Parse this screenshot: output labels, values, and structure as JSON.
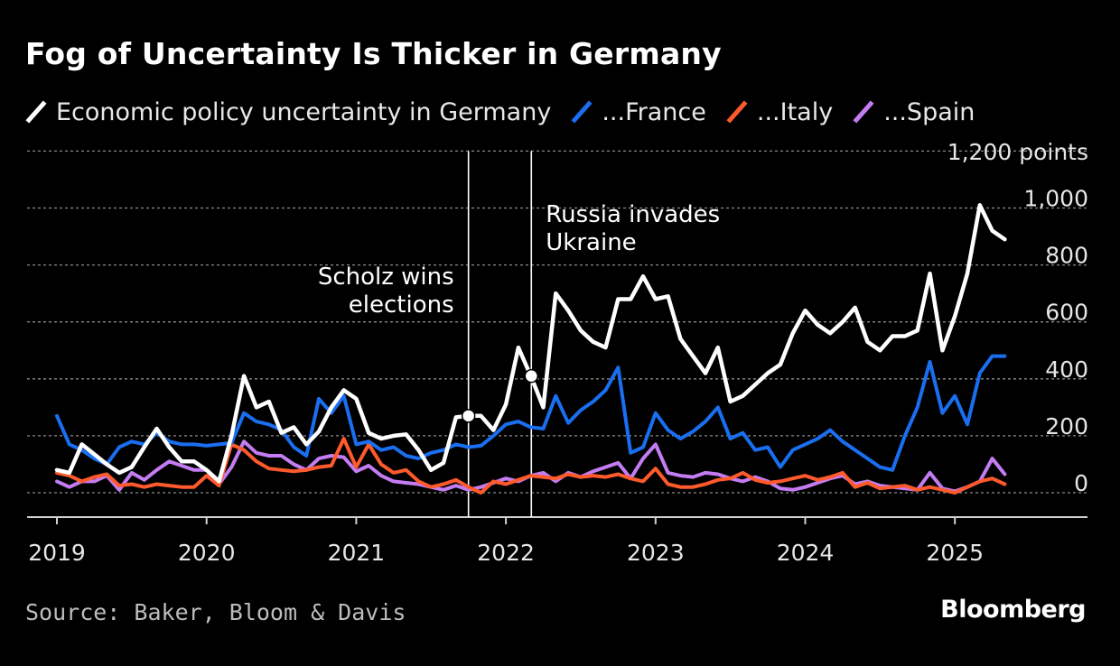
{
  "chart_data": {
    "type": "line",
    "title": "Fog of Uncertainty Is Thicker in Germany",
    "y_unit_label": "1,200 points",
    "ylim": [
      -50,
      1200
    ],
    "y_ticks": [
      0,
      200,
      400,
      600,
      800,
      1000
    ],
    "y_tick_labels": [
      "0",
      "200",
      "400",
      "600",
      "800",
      "1,000"
    ],
    "xlim": [
      2018.8,
      2025.85
    ],
    "x_ticks": [
      2019,
      2020,
      2021,
      2022,
      2023,
      2024,
      2025
    ],
    "x_tick_labels": [
      "2019",
      "2020",
      "2021",
      "2022",
      "2023",
      "2024",
      "2025"
    ],
    "start": 2019.0,
    "step": 0.08333,
    "series": [
      {
        "name": "Economic policy uncertainty in Germany",
        "color": "#ffffff",
        "values": [
          80,
          70,
          170,
          135,
          100,
          70,
          90,
          160,
          225,
          160,
          110,
          110,
          80,
          40,
          200,
          410,
          300,
          320,
          210,
          230,
          170,
          215,
          300,
          360,
          330,
          210,
          190,
          200,
          205,
          150,
          80,
          105,
          265,
          270,
          270,
          220,
          310,
          510,
          410,
          300,
          700,
          640,
          570,
          530,
          510,
          680,
          680,
          760,
          680,
          690,
          540,
          480,
          420,
          510,
          320,
          340,
          380,
          420,
          450,
          560,
          640,
          590,
          560,
          600,
          650,
          530,
          500,
          550,
          550,
          570,
          770,
          500,
          620,
          770,
          1010,
          920,
          890
        ]
      },
      {
        "name": "...France",
        "color": "#1a6ef0",
        "values": [
          270,
          170,
          150,
          120,
          100,
          160,
          180,
          170,
          210,
          180,
          170,
          170,
          165,
          170,
          175,
          280,
          250,
          240,
          220,
          160,
          130,
          330,
          280,
          340,
          170,
          180,
          150,
          160,
          130,
          120,
          140,
          150,
          170,
          160,
          165,
          200,
          240,
          250,
          230,
          225,
          340,
          245,
          290,
          320,
          360,
          440,
          140,
          160,
          280,
          220,
          190,
          215,
          250,
          300,
          190,
          210,
          150,
          160,
          90,
          150,
          170,
          190,
          220,
          180,
          150,
          120,
          90,
          80,
          200,
          300,
          460,
          280,
          340,
          240,
          420,
          480,
          480
        ]
      },
      {
        "name": "...Italy",
        "color": "#ff5a2c",
        "values": [
          70,
          60,
          40,
          55,
          65,
          25,
          30,
          20,
          30,
          25,
          20,
          20,
          60,
          25,
          170,
          150,
          110,
          85,
          80,
          75,
          80,
          90,
          95,
          190,
          90,
          170,
          100,
          70,
          80,
          40,
          20,
          30,
          45,
          20,
          0,
          40,
          30,
          45,
          60,
          55,
          50,
          65,
          55,
          60,
          55,
          65,
          50,
          40,
          85,
          30,
          20,
          20,
          30,
          45,
          50,
          70,
          45,
          35,
          40,
          50,
          60,
          45,
          55,
          70,
          20,
          35,
          15,
          20,
          25,
          10,
          20,
          10,
          0,
          20,
          40,
          50,
          30
        ]
      },
      {
        "name": "...Spain",
        "color": "#c47cf2",
        "values": [
          40,
          20,
          40,
          40,
          60,
          10,
          70,
          45,
          80,
          110,
          95,
          80,
          80,
          30,
          90,
          180,
          140,
          130,
          130,
          100,
          80,
          120,
          130,
          125,
          75,
          95,
          60,
          40,
          35,
          30,
          20,
          10,
          25,
          10,
          20,
          35,
          50,
          40,
          60,
          70,
          40,
          70,
          55,
          75,
          90,
          105,
          50,
          120,
          170,
          70,
          60,
          55,
          70,
          65,
          50,
          40,
          55,
          40,
          15,
          10,
          20,
          35,
          50,
          60,
          30,
          40,
          25,
          20,
          15,
          10,
          70,
          15,
          5,
          20,
          40,
          120,
          65
        ]
      }
    ],
    "annotations": [
      {
        "x": 2021.75,
        "lines": [
          "Scholz wins",
          "elections"
        ],
        "marker_series": 0,
        "align": "right"
      },
      {
        "x": 2022.17,
        "lines": [
          "Russia invades",
          "Ukraine"
        ],
        "marker_series": 0,
        "align": "left"
      }
    ],
    "source": "Source: Baker, Bloom & Davis",
    "brand": "Bloomberg"
  }
}
